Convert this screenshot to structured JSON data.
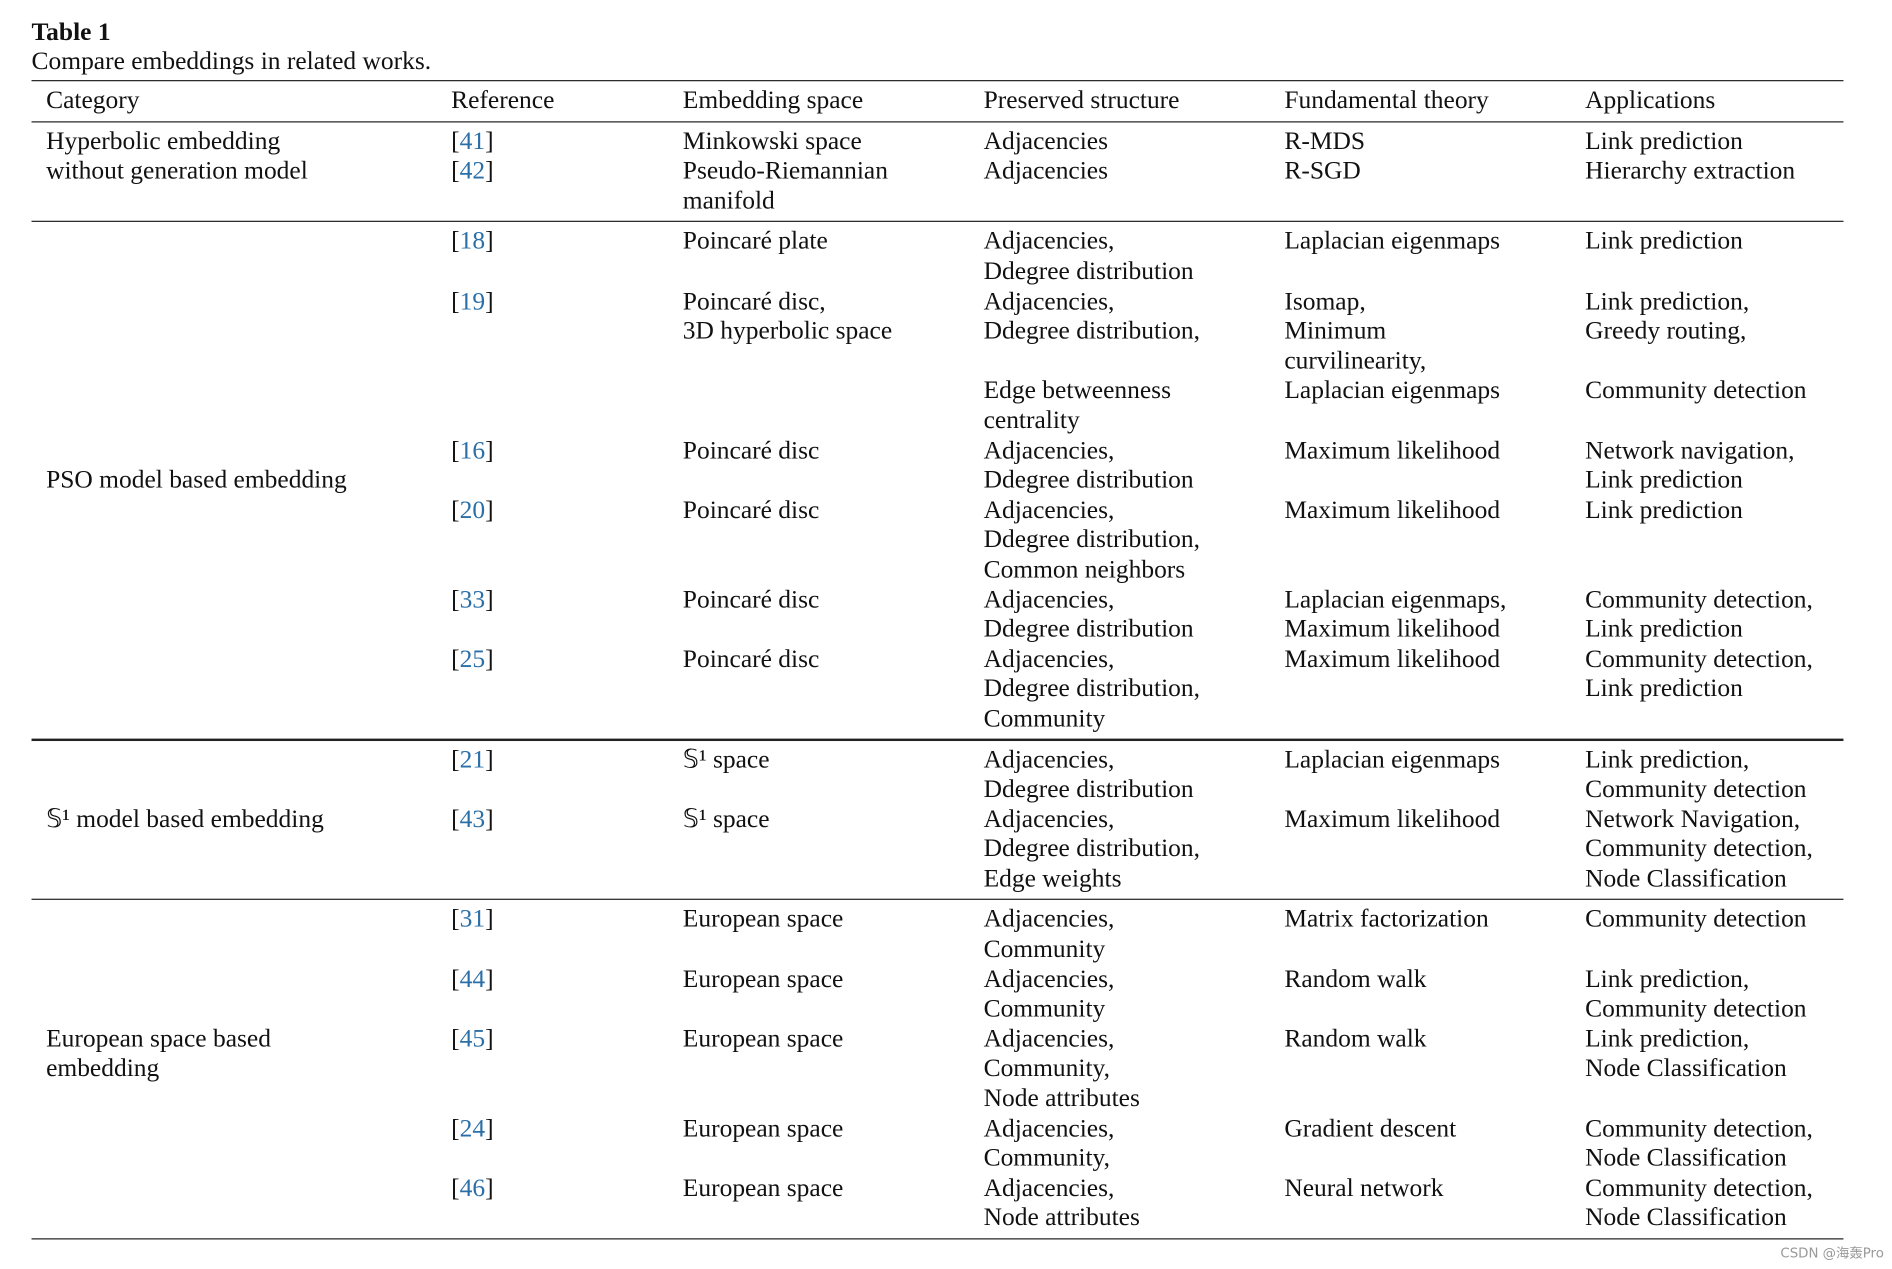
{
  "title": "Table 1",
  "caption": "Compare embeddings in related works.",
  "table": {
    "header": [
      "Category",
      "Reference",
      "Embedding space",
      "Preserved structure",
      "Fundamental theory",
      "Applications"
    ],
    "groups": [
      {
        "category": [
          "Hyperbolic embedding",
          "without generation model"
        ],
        "rows": [
          {
            "ref": "[41]",
            "space": [
              "Minkowski space"
            ],
            "structure": [
              "Adjacencies"
            ],
            "theory": [
              "R-MDS"
            ],
            "applications": [
              "Link prediction"
            ]
          },
          {
            "ref": "[42]",
            "space": [
              "Pseudo-Riemannian",
              "manifold"
            ],
            "structure": [
              "Adjacencies"
            ],
            "theory": [
              "R-SGD"
            ],
            "applications": [
              "Hierarchy extraction"
            ]
          }
        ]
      },
      {
        "category": [
          "PSO model based embedding"
        ],
        "rows": [
          {
            "ref": "[18]",
            "space": [
              "Poincaré plate"
            ],
            "structure": [
              "Adjacencies,",
              "Ddegree distribution"
            ],
            "theory": [
              "Laplacian eigenmaps"
            ],
            "applications": [
              "Link prediction"
            ]
          },
          {
            "ref": "[19]",
            "space": [
              "Poincaré disc,",
              "3D hyperbolic space"
            ],
            "structure": [
              "Adjacencies,",
              "Ddegree distribution,"
            ],
            "theory": [
              "Isomap,",
              "Minimum",
              "curvilinearity,"
            ],
            "applications": [
              "Link prediction,",
              "Greedy routing,"
            ]
          },
          {
            "structure": [
              "Edge betweenness",
              "centrality"
            ],
            "theory": [
              "Laplacian eigenmaps"
            ],
            "applications": [
              "Community detection"
            ]
          },
          {
            "ref": "[16]",
            "space": [
              "Poincaré disc"
            ],
            "structure": [
              "Adjacencies,",
              "Ddegree distribution"
            ],
            "theory": [
              "Maximum likelihood"
            ],
            "applications": [
              "Network navigation,",
              "Link prediction"
            ]
          },
          {
            "ref": "[20]",
            "space": [
              "Poincaré disc"
            ],
            "structure": [
              "Adjacencies,",
              "Ddegree distribution,",
              "Common neighbors"
            ],
            "theory": [
              "Maximum likelihood"
            ],
            "applications": [
              "Link prediction"
            ]
          },
          {
            "ref": "[33]",
            "space": [
              "Poincaré disc"
            ],
            "structure": [
              "Adjacencies,",
              "Ddegree distribution"
            ],
            "theory": [
              "Laplacian eigenmaps,",
              "Maximum likelihood"
            ],
            "applications": [
              "Community detection,",
              "Link prediction"
            ]
          },
          {
            "ref": "[25]",
            "space": [
              "Poincaré disc"
            ],
            "structure": [
              "Adjacencies,",
              "Ddegree distribution,",
              "Community"
            ],
            "theory": [
              "Maximum likelihood"
            ],
            "applications": [
              "Community detection,",
              "Link prediction"
            ]
          }
        ]
      },
      {
        "category": [
          "𝕊¹ model based embedding"
        ],
        "rows": [
          {
            "ref": "[21]",
            "space": [
              "𝕊¹ space"
            ],
            "structure": [
              "Adjacencies,",
              "Ddegree distribution"
            ],
            "theory": [
              "Laplacian eigenmaps"
            ],
            "applications": [
              "Link prediction,",
              "Community detection"
            ]
          },
          {
            "ref": "[43]",
            "space": [
              "𝕊¹ space"
            ],
            "structure": [
              "Adjacencies,",
              "Ddegree distribution,",
              "Edge weights"
            ],
            "theory": [
              "Maximum likelihood"
            ],
            "applications": [
              "Network Navigation,",
              "Community detection,",
              "Node Classification"
            ]
          }
        ]
      },
      {
        "category": [
          "European space based",
          "embedding"
        ],
        "rows": [
          {
            "ref": "[31]",
            "space": [
              "European space"
            ],
            "structure": [
              "Adjacencies,",
              "Community"
            ],
            "theory": [
              "Matrix factorization"
            ],
            "applications": [
              "Community detection"
            ]
          },
          {
            "ref": "[44]",
            "space": [
              "European space"
            ],
            "structure": [
              "Adjacencies,",
              "Community"
            ],
            "theory": [
              "Random walk"
            ],
            "applications": [
              "Link prediction,",
              "Community detection"
            ]
          },
          {
            "ref": "[45]",
            "space": [
              "European space"
            ],
            "structure": [
              "Adjacencies,",
              "Community,",
              "Node attributes"
            ],
            "theory": [
              "Random walk"
            ],
            "applications": [
              "Link prediction,",
              "Node Classification"
            ]
          },
          {
            "ref": "[24]",
            "space": [
              "European space"
            ],
            "structure": [
              "Adjacencies,",
              "Community,"
            ],
            "theory": [
              "Gradient descent"
            ],
            "applications": [
              "Community detection,",
              "Node Classification"
            ]
          },
          {
            "ref": "[46]",
            "space": [
              "European space"
            ],
            "structure": [
              "Adjacencies,",
              "Node attributes"
            ],
            "theory": [
              "Neural network"
            ],
            "applications": [
              "Community detection,",
              "Node Classification"
            ]
          }
        ]
      }
    ]
  },
  "watermark": "CSDN @海轰Pro"
}
